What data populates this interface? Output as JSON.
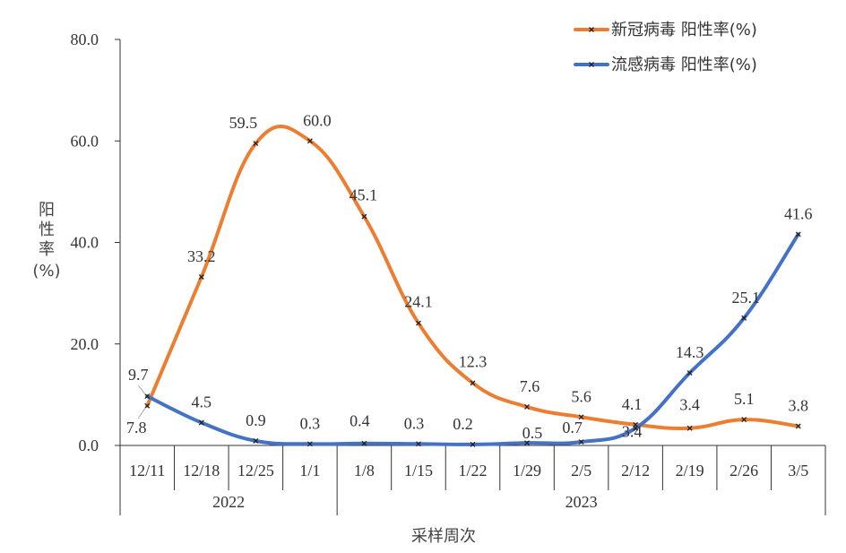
{
  "chart_data": {
    "type": "line",
    "categories": [
      "12/11",
      "12/18",
      "12/25",
      "1/1",
      "1/8",
      "1/15",
      "1/22",
      "1/29",
      "2/5",
      "2/12",
      "2/19",
      "2/26",
      "3/5"
    ],
    "year_groups": [
      {
        "label": "2022",
        "count": 4
      },
      {
        "label": "2023",
        "count": 9
      }
    ],
    "series": [
      {
        "name": "新冠病毒 阳性率(%)",
        "color": "#ED7D31",
        "values": [
          7.8,
          33.2,
          59.5,
          60.0,
          45.1,
          24.1,
          12.3,
          7.6,
          5.6,
          4.1,
          3.4,
          5.1,
          3.8
        ],
        "labels": [
          "7.8",
          "33.2",
          "59.5",
          "60.0",
          "45.1",
          "24.1",
          "12.3",
          "7.6",
          "5.6",
          "4.1",
          "3.4",
          "5.1",
          "3.8"
        ]
      },
      {
        "name": "流感病毒 阳性率(%)",
        "color": "#4472C4",
        "values": [
          9.7,
          4.5,
          0.9,
          0.3,
          0.4,
          0.3,
          0.2,
          0.5,
          0.7,
          3.4,
          14.3,
          25.1,
          41.6
        ],
        "labels": [
          "9.7",
          "4.5",
          "0.9",
          "0.3",
          "0.4",
          "0.3",
          "0.2",
          "0.5",
          "0.7",
          "3.4",
          "14.3",
          "25.1",
          "41.6"
        ]
      }
    ],
    "yticks": [
      "0.0",
      "20.0",
      "40.0",
      "60.0",
      "80.0"
    ],
    "ylim": [
      0,
      80
    ],
    "ylabel_chars": [
      "阳",
      "性",
      "率"
    ],
    "ylabel_unit": "(%)",
    "xlabel": "采样周次",
    "legend_position": "top-right",
    "grid": false
  }
}
